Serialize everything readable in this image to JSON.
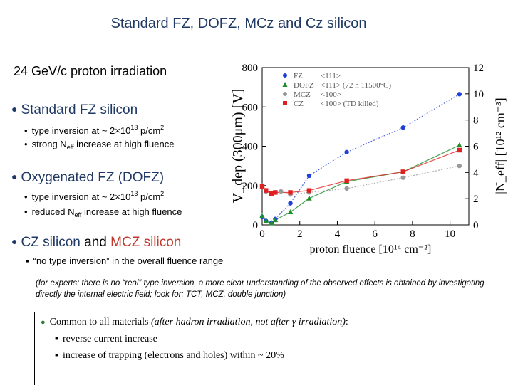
{
  "slide": {
    "title": "Standard FZ, DOFZ, MCz and Cz silicon",
    "subtitle": "24 GeV/c proton irradiation",
    "sections": [
      {
        "heading": "Standard FZ silicon",
        "bullets": [
          {
            "pre": "type inversion",
            "mid": " at  ~ 2×10",
            "sup": "13",
            "post": " p/cm",
            "sup2": "2"
          },
          {
            "pre": "strong N",
            "sub": "eff",
            "post": " increase at high fluence"
          }
        ]
      },
      {
        "heading": "Oxygenated FZ (DOFZ)",
        "bullets": [
          {
            "pre": "type inversion",
            "mid": " at  ~ 2×10",
            "sup": "13",
            "post": " p/cm",
            "sup2": "2"
          },
          {
            "pre": "reduced N",
            "sub": "eff",
            "post": " increase at high fluence"
          }
        ]
      },
      {
        "heading_a": "CZ silicon",
        "heading_and": " and ",
        "heading_b": "MCZ silicon",
        "bullet": {
          "pre": "“no type inversion”",
          "post": " in the overall fluence range"
        }
      }
    ],
    "note": "(for experts: there is no “real” type inversion, a more clear understanding of the observed effects is obtained by investigating directly the internal electric field; look for: TCT, MCZ, double junction)",
    "box": {
      "line1_a": "Common to all materials ",
      "line1_b": "(after hadron irradiation, not after  γ irradiation)",
      "line1_c": ":",
      "line2": "reverse current increase",
      "line3": "increase of trapping (electrons and holes) within ~ 20%"
    }
  },
  "chart_data": {
    "type": "scatter",
    "xlabel": "proton fluence [10¹⁴ cm⁻²]",
    "ylabel": "V_dep (300μm) [V]",
    "y2label": "|N_eff| [10¹² cm⁻³]",
    "xlim": [
      0,
      11
    ],
    "ylim": [
      0,
      800
    ],
    "y2lim": [
      0,
      12
    ],
    "xticks": [
      0,
      2,
      4,
      6,
      8,
      10
    ],
    "yticks": [
      0,
      200,
      400,
      600,
      800
    ],
    "y2ticks": [
      0,
      2,
      4,
      6,
      8,
      10,
      12
    ],
    "series": [
      {
        "name": "FZ",
        "legend_note": "<111>",
        "marker": "circle",
        "color": "#1f3fd6",
        "x": [
          0.0,
          0.2,
          0.5,
          0.7,
          1.5,
          2.5,
          4.5,
          7.5,
          10.5
        ],
        "y": [
          40,
          20,
          10,
          30,
          110,
          250,
          370,
          495,
          665
        ]
      },
      {
        "name": "DOFZ",
        "legend_note": "<111> (72 h 11500°C)",
        "marker": "triangle",
        "color": "#1f8f2a",
        "x": [
          0.0,
          0.2,
          0.5,
          0.7,
          1.5,
          2.5,
          4.5,
          7.5,
          10.5
        ],
        "y": [
          45,
          20,
          10,
          25,
          65,
          135,
          220,
          270,
          405
        ]
      },
      {
        "name": "MCZ",
        "legend_note": "<100>",
        "marker": "circle",
        "color": "#999999",
        "x": [
          0.0,
          0.2,
          0.5,
          1.0,
          1.5,
          2.5,
          4.5,
          7.5,
          10.5
        ],
        "y": [
          200,
          170,
          160,
          170,
          155,
          165,
          185,
          240,
          300
        ]
      },
      {
        "name": "CZ",
        "legend_note": "<100> (TD killed)",
        "marker": "square",
        "color": "#e02020",
        "x": [
          0.0,
          0.2,
          0.5,
          0.7,
          1.5,
          2.5,
          4.5,
          7.5,
          10.5
        ],
        "y": [
          195,
          175,
          160,
          165,
          165,
          175,
          225,
          270,
          380
        ]
      }
    ],
    "legend": "top-left"
  }
}
